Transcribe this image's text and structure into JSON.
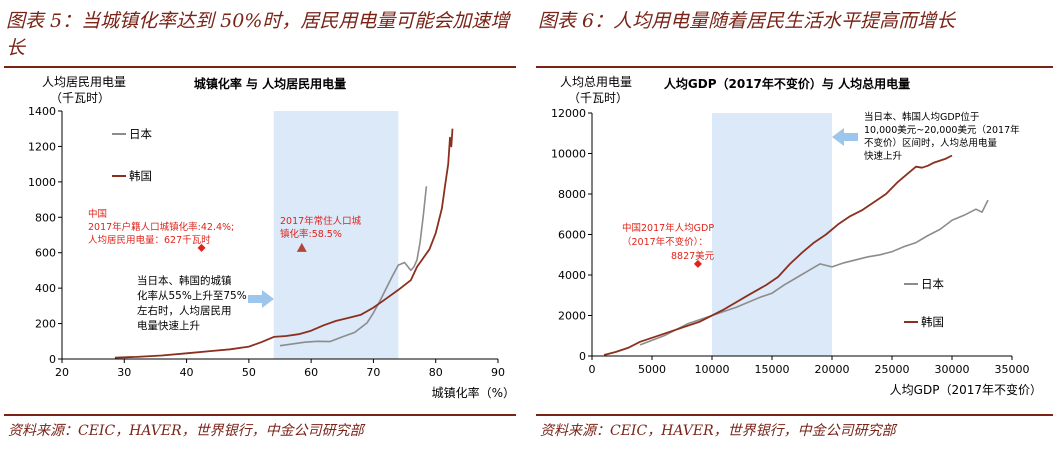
{
  "left": {
    "figure_title": "图表 5：当城镇化率达到 50%时，居民用电量可能会加速增长",
    "source": "资料来源：CEIC，HAVER，世界银行，中金公司研究部"
  },
  "right": {
    "figure_title": "图表 6：人均用电量随着居民生活水平提高而增长",
    "source": "资料来源：CEIC，HAVER，世界银行，中金公司研究部"
  },
  "colors": {
    "japan": "#8c8c8c",
    "korea": "#8b2f1e",
    "shade": "#dbe9f8",
    "accent_red": "#e0241b",
    "arrow": "#9cc6ec",
    "rule": "#7a2418"
  },
  "chart_data": [
    {
      "type": "line",
      "title": "城镇化率 与 人均居民用电量",
      "ylabel": "人均居民用电量",
      "ylabel_unit": "（千瓦时）",
      "xlabel": "城镇化率（%）",
      "xlim": [
        20,
        90
      ],
      "ylim": [
        0,
        1400
      ],
      "xticks": [
        20,
        30,
        40,
        50,
        60,
        70,
        80,
        90
      ],
      "yticks": [
        0,
        200,
        400,
        600,
        800,
        1000,
        1200,
        1400
      ],
      "grid": false,
      "legend": "top-left",
      "shaded_range": [
        54,
        74
      ],
      "series": [
        {
          "name": "日本",
          "color": "#8c8c8c",
          "points": [
            [
              55,
              75
            ],
            [
              57,
              85
            ],
            [
              59,
              95
            ],
            [
              61,
              100
            ],
            [
              63,
              98
            ],
            [
              65,
              125
            ],
            [
              67,
              150
            ],
            [
              69,
              205
            ],
            [
              70,
              260
            ],
            [
              71,
              325
            ],
            [
              72,
              395
            ],
            [
              73,
              465
            ],
            [
              74,
              530
            ],
            [
              75,
              545
            ],
            [
              76,
              500
            ],
            [
              76.5,
              520
            ],
            [
              77,
              560
            ],
            [
              77.5,
              660
            ],
            [
              78,
              810
            ],
            [
              78.5,
              975
            ]
          ]
        },
        {
          "name": "韩国",
          "color": "#8b2f1e",
          "points": [
            [
              28.5,
              8
            ],
            [
              32,
              12
            ],
            [
              36,
              20
            ],
            [
              40,
              32
            ],
            [
              44,
              45
            ],
            [
              47,
              55
            ],
            [
              50,
              70
            ],
            [
              52,
              95
            ],
            [
              54,
              125
            ],
            [
              56,
              130
            ],
            [
              58,
              140
            ],
            [
              60,
              160
            ],
            [
              62,
              190
            ],
            [
              64,
              215
            ],
            [
              66,
              232
            ],
            [
              68,
              250
            ],
            [
              70,
              290
            ],
            [
              72,
              340
            ],
            [
              74,
              390
            ],
            [
              76,
              445
            ],
            [
              77,
              520
            ],
            [
              78,
              570
            ],
            [
              79,
              620
            ],
            [
              80,
              710
            ],
            [
              81,
              850
            ],
            [
              81.5,
              980
            ],
            [
              82,
              1100
            ],
            [
              82.3,
              1250
            ],
            [
              82.5,
              1200
            ],
            [
              82.7,
              1300
            ]
          ]
        }
      ],
      "annotations": {
        "china": {
          "label": "中国",
          "line1": "2017年户籍人口城镇化率:42.4%;",
          "line2": "人均居民用电量：627千瓦时",
          "x": 42.4,
          "y": 627
        },
        "china_resident": {
          "line1": "2017年常住人口城",
          "line2": "镇化率:58.5%",
          "x": 58.5,
          "y": 627
        },
        "callout": {
          "line1": "当日本、韩国的城镇",
          "line2": "化率从55%上升至75%",
          "line3": "左右时，人均居民用",
          "line4": "电量快速上升"
        }
      }
    },
    {
      "type": "line",
      "title": "人均GDP（2017年不变价）与 人均总用电量",
      "ylabel": "人均总用电量",
      "ylabel_unit": "（千瓦时）",
      "xlabel": "人均GDP（2017年不变价）",
      "xlim": [
        0,
        35000
      ],
      "ylim": [
        0,
        12000
      ],
      "xticks": [
        0,
        5000,
        10000,
        15000,
        20000,
        25000,
        30000,
        35000
      ],
      "yticks": [
        0,
        2000,
        4000,
        6000,
        8000,
        10000,
        12000
      ],
      "grid": false,
      "legend": "bottom-right",
      "shaded_range": [
        10000,
        20000
      ],
      "series": [
        {
          "name": "日本",
          "color": "#8c8c8c",
          "points": [
            [
              4000,
              550
            ],
            [
              6000,
              1000
            ],
            [
              8000,
              1600
            ],
            [
              10000,
              2000
            ],
            [
              12000,
              2400
            ],
            [
              14000,
              2900
            ],
            [
              15000,
              3100
            ],
            [
              16000,
              3500
            ],
            [
              17000,
              3850
            ],
            [
              18000,
              4200
            ],
            [
              19000,
              4550
            ],
            [
              20000,
              4400
            ],
            [
              21000,
              4600
            ],
            [
              22000,
              4750
            ],
            [
              23000,
              4900
            ],
            [
              24000,
              5000
            ],
            [
              25000,
              5150
            ],
            [
              26000,
              5400
            ],
            [
              27000,
              5600
            ],
            [
              28000,
              5950
            ],
            [
              29000,
              6250
            ],
            [
              30000,
              6700
            ],
            [
              31000,
              6950
            ],
            [
              32000,
              7250
            ],
            [
              32500,
              7100
            ],
            [
              33000,
              7700
            ]
          ]
        },
        {
          "name": "韩国",
          "color": "#8b2f1e",
          "points": [
            [
              1000,
              50
            ],
            [
              2000,
              200
            ],
            [
              3000,
              400
            ],
            [
              4000,
              700
            ],
            [
              5000,
              900
            ],
            [
              7000,
              1300
            ],
            [
              9000,
              1700
            ],
            [
              11000,
              2300
            ],
            [
              13000,
              3000
            ],
            [
              14500,
              3500
            ],
            [
              15500,
              3900
            ],
            [
              16500,
              4550
            ],
            [
              17500,
              5100
            ],
            [
              18500,
              5600
            ],
            [
              19500,
              6000
            ],
            [
              20500,
              6500
            ],
            [
              21500,
              6900
            ],
            [
              22500,
              7200
            ],
            [
              23500,
              7600
            ],
            [
              24500,
              8000
            ],
            [
              25500,
              8600
            ],
            [
              26500,
              9100
            ],
            [
              27000,
              9350
            ],
            [
              27500,
              9300
            ],
            [
              28000,
              9400
            ],
            [
              28500,
              9550
            ],
            [
              29000,
              9650
            ],
            [
              29500,
              9750
            ],
            [
              30000,
              9900
            ]
          ]
        }
      ],
      "annotations": {
        "china": {
          "line1": "中国2017年人均GDP",
          "line2": "（2017年不变价）：",
          "line3": "8827美元",
          "x": 8827,
          "y": 4550
        },
        "callout": {
          "line1": "当日本、韩国人均GDP位于",
          "line2": "10,000美元~20,000美元（2017年",
          "line3": "不变价）区间时，人均总用电量",
          "line4": "快速上升"
        }
      }
    }
  ]
}
